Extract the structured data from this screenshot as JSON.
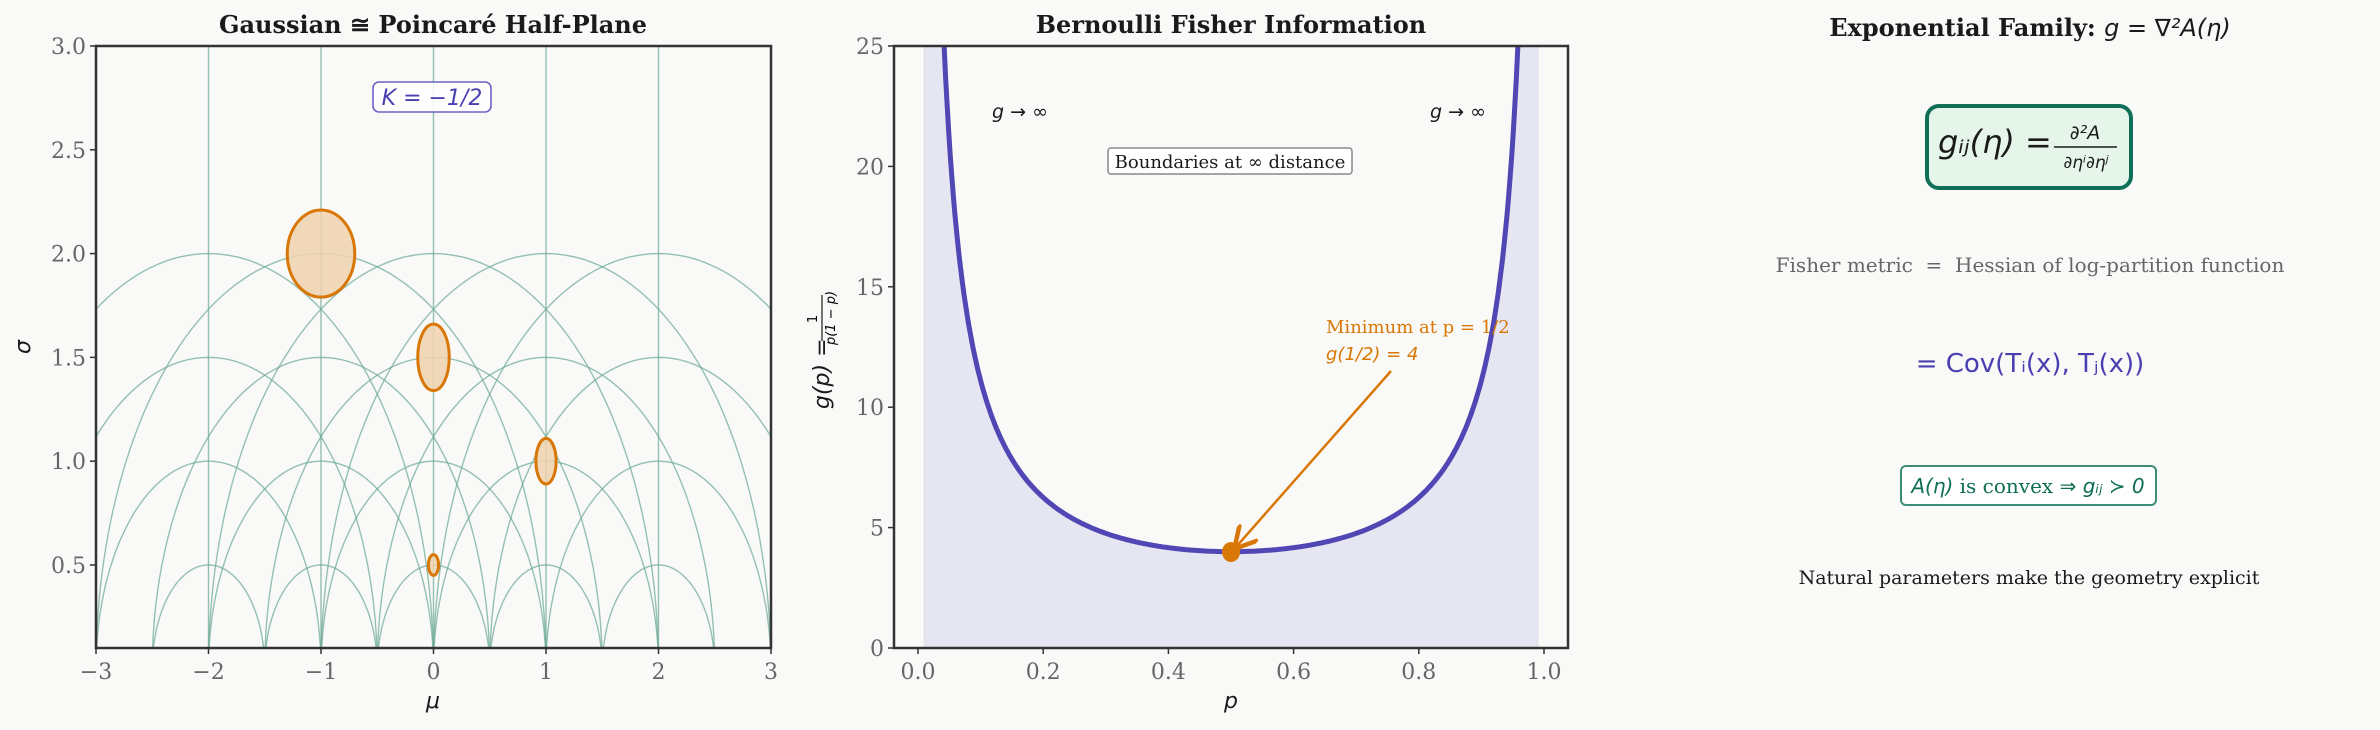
{
  "figure": {
    "background": "#f9f9f7",
    "colors": {
      "geodesic": "#6aa894",
      "ellipse_edge": "#d97706",
      "ellipse_fill": "#f0d2ae",
      "curve": "#5046b4",
      "fill_under": "#e6e6f2",
      "annotation": "#d97706",
      "green": "#0f6e56",
      "green_fill": "#e6f5ea",
      "purple_text": "#4a3fb0",
      "gray_text": "#666666"
    }
  },
  "chart_data": [
    {
      "type": "line",
      "title": "Gaussian ≅ Poincaré Half-Plane",
      "xlabel": "μ",
      "ylabel": "σ",
      "xlim": [
        -3,
        3
      ],
      "ylim": [
        0.1,
        3.0
      ],
      "xticks": [
        "−3",
        "−2",
        "−1",
        "0",
        "1",
        "2",
        "3"
      ],
      "xtick_values": [
        -3,
        -2,
        -1,
        0,
        1,
        2,
        3
      ],
      "yticks": [
        "0.5",
        "1.0",
        "1.5",
        "2.0",
        "2.5",
        "3.0"
      ],
      "ytick_values": [
        0.5,
        1.0,
        1.5,
        2.0,
        2.5,
        3.0
      ],
      "grid": false,
      "vertical_geodesics_mu": [
        -2,
        -1,
        0,
        1,
        2
      ],
      "semicircle_geodesics": {
        "centers_mu": [
          -2,
          -1,
          0,
          1,
          2
        ],
        "radii": [
          0.5,
          1.0,
          1.5,
          2.0
        ]
      },
      "fisher_ellipses": [
        {
          "mu": -1,
          "sigma": 2.0,
          "half_width": 0.3,
          "half_height": 0.21
        },
        {
          "mu": 0,
          "sigma": 1.5,
          "half_width": 0.14,
          "half_height": 0.16
        },
        {
          "mu": 1,
          "sigma": 1.0,
          "half_width": 0.09,
          "half_height": 0.11
        },
        {
          "mu": 0,
          "sigma": 0.5,
          "half_width": 0.045,
          "half_height": 0.05
        }
      ],
      "annotations": [
        {
          "text": "K = −1/2",
          "mu": 0,
          "sigma": 2.73,
          "boxed": true
        }
      ]
    },
    {
      "type": "line",
      "title": "Bernoulli Fisher Information",
      "xlabel": "p",
      "ylabel": "g(p) = 1 / (p(1 − p))",
      "xlim": [
        -0.03,
        1.04
      ],
      "ylim": [
        0,
        25
      ],
      "xticks": [
        "0.0",
        "0.2",
        "0.4",
        "0.6",
        "0.8",
        "1.0"
      ],
      "xtick_values": [
        0.0,
        0.2,
        0.4,
        0.6,
        0.8,
        1.0
      ],
      "yticks": [
        "0",
        "5",
        "10",
        "15",
        "20",
        "25"
      ],
      "ytick_values": [
        0,
        5,
        10,
        15,
        20,
        25
      ],
      "grid": false,
      "series": [
        {
          "name": "g(p)",
          "function": "1/(p*(1-p))",
          "p_range": [
            0.01,
            0.99
          ],
          "x": [
            0.05,
            0.1,
            0.15,
            0.2,
            0.3,
            0.4,
            0.5,
            0.6,
            0.7,
            0.8,
            0.85,
            0.9,
            0.95
          ],
          "y": [
            21.05,
            11.11,
            7.84,
            6.25,
            4.76,
            4.17,
            4.0,
            4.17,
            4.76,
            6.25,
            7.84,
            11.11,
            21.05
          ]
        }
      ],
      "shaded_region": {
        "p_from": 0.01,
        "p_to": 0.99,
        "under": "g(p)"
      },
      "minimum_point": {
        "p": 0.5,
        "g": 4
      },
      "annotations": [
        {
          "text": "g → ∞",
          "p": 0.12,
          "g": 22
        },
        {
          "text": "g → ∞",
          "p": 0.81,
          "g": 22
        },
        {
          "text": "Boundaries at ∞ distance",
          "p": 0.5,
          "g": 20.2,
          "boxed": true
        },
        {
          "line1": "Minimum at p = 1/2",
          "line2": "g(1/2) = 4",
          "p": 0.65,
          "g": 12.0,
          "arrow_to": [
            0.5,
            4
          ]
        }
      ]
    }
  ],
  "text_panel": {
    "title_text": "Exponential Family: ",
    "title_math": "g = ∇²A(η)",
    "formula_box": {
      "lhs": "gᵢⱼ(η) =",
      "numerator": "∂²A",
      "denominator": "∂ηⁱ∂ηʲ"
    },
    "fisher_line": "Fisher metric  =  Hessian of log-partition function",
    "cov_line": "= Cov(Tᵢ(x), Tⱼ(x))",
    "convex_box": {
      "math_a": "A(η)",
      "text": " is convex ",
      "math_b": "⇒ gᵢⱼ ≻ 0"
    },
    "footer": "Natural parameters make the geometry explicit"
  }
}
